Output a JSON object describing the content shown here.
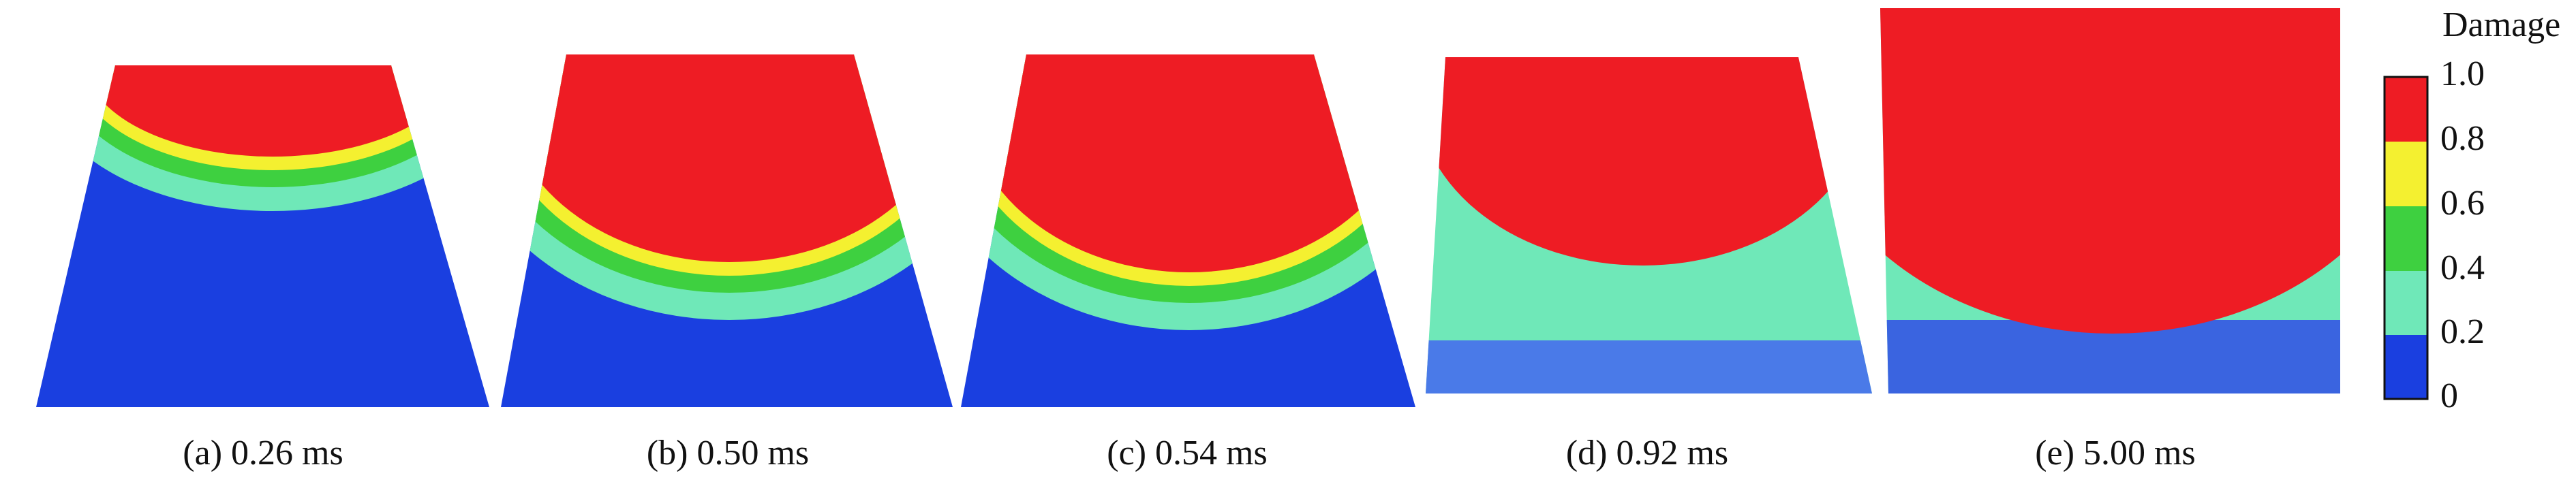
{
  "panels": [
    {
      "caption": "(a) 0.26 ms"
    },
    {
      "caption": "(b) 0.50 ms"
    },
    {
      "caption": "(c) 0.54 ms"
    },
    {
      "caption": "(d) 0.92 ms"
    },
    {
      "caption": "(e) 5.00 ms"
    }
  ],
  "colorbar": {
    "title": "Damage",
    "ticks": [
      "1.0",
      "0.8",
      "0.6",
      "0.4",
      "0.2",
      "0"
    ]
  }
}
